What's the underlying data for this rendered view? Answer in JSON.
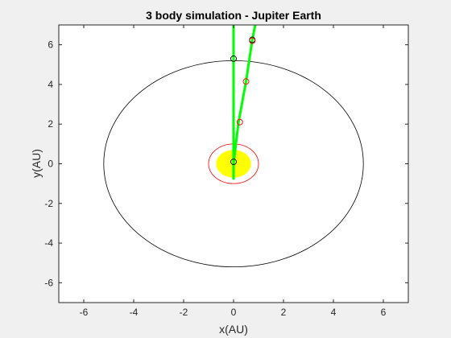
{
  "chart_data": {
    "type": "scatter",
    "title": "3 body simulation - Jupiter Earth",
    "xlabel": "x(AU)",
    "ylabel": "y(AU)",
    "xlim": [
      -7,
      7
    ],
    "ylim": [
      -7,
      7
    ],
    "xticks": [
      -6,
      -4,
      -2,
      0,
      2,
      4,
      6
    ],
    "yticks": [
      -6,
      -4,
      -2,
      0,
      2,
      4,
      6
    ],
    "grid": false,
    "colors": {
      "sun": "#ffff00",
      "jupiter_orbit": "#000000",
      "earth_orbit": "#ff0000",
      "trajectory": "#00ff00",
      "black_marker": "#000000",
      "red_marker": "#ff0000"
    },
    "sun": {
      "x": 0,
      "y": 0,
      "radius": 0.7
    },
    "jupiter_orbit": {
      "cx": 0,
      "cy": 0,
      "rx": 5.2,
      "ry": 5.2
    },
    "earth_orbit": {
      "cx": 0,
      "cy": 0,
      "rx": 1.0,
      "ry": 1.0
    },
    "series": [
      {
        "style": "line",
        "color": "#00ff00",
        "x": [
          0,
          0,
          0,
          0,
          0
        ],
        "y": [
          -0.8,
          0,
          2,
          5.3,
          7.2
        ]
      },
      {
        "style": "line",
        "color": "#00ff00",
        "x": [
          0,
          0.2,
          0.5,
          0.75,
          0.9
        ],
        "y": [
          0,
          2.1,
          4.15,
          6.25,
          7.2
        ]
      },
      {
        "style": "marker",
        "color": "#000000",
        "x": [
          0,
          0,
          0.75
        ],
        "y": [
          0.1,
          5.3,
          6.25
        ]
      },
      {
        "style": "marker",
        "color": "#ff0000",
        "x": [
          0.25,
          0.5,
          0.75
        ],
        "y": [
          2.1,
          4.15,
          6.2
        ]
      }
    ]
  }
}
